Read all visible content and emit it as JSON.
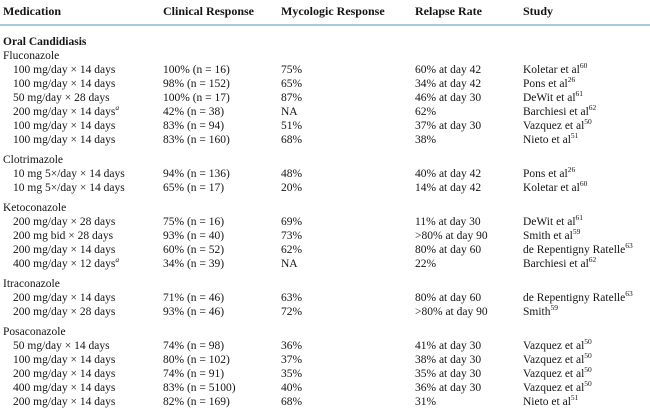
{
  "page": {
    "rule_color": "#a8c9dc",
    "background": "#ffffff"
  },
  "table": {
    "columns": [
      "Medication",
      "Clinical Response",
      "Mycologic Response",
      "Relapse Rate",
      "Study"
    ],
    "rows": [
      {
        "type": "section",
        "label": "Oral Candidiasis",
        "bold": true
      },
      {
        "type": "group",
        "label": "Fluconazole"
      },
      {
        "type": "data",
        "med": "100 mg/day × 14 days",
        "clinical": "100% (n = 16)",
        "myc": "75%",
        "relapse": "60% at day 42",
        "study": "Koletar et al",
        "study_sup": "60"
      },
      {
        "type": "data",
        "med": "100 mg/day × 14 days",
        "clinical": "98% (n = 152)",
        "myc": "65%",
        "relapse": "34% at day 42",
        "study": "Pons et al",
        "study_sup": "26"
      },
      {
        "type": "data",
        "med": "50 mg/day × 28 days",
        "clinical": "100% (n = 17)",
        "myc": "87%",
        "relapse": "46% at day 30",
        "study": "DeWit et al",
        "study_sup": "61"
      },
      {
        "type": "data",
        "med": "200 mg/day × 14 days",
        "med_sup": "a",
        "clinical": "42% (n = 38)",
        "myc": "NA",
        "relapse": "62%",
        "study": "Barchiesi et al",
        "study_sup": "62"
      },
      {
        "type": "data",
        "med": "100 mg/day × 14 days",
        "clinical": "83% (n = 94)",
        "myc": "51%",
        "relapse": "37% at day 30",
        "study": "Vazquez et al",
        "study_sup": "50"
      },
      {
        "type": "data",
        "med": "100 mg/day × 14 days",
        "clinical": "83% (n = 160)",
        "myc": "68%",
        "relapse": "38%",
        "study": "Nieto et al",
        "study_sup": "51"
      },
      {
        "type": "group",
        "label": "Clotrimazole",
        "gap": true
      },
      {
        "type": "data",
        "med": "10 mg 5×/day × 14 days",
        "clinical": "94% (n = 136)",
        "myc": "48%",
        "relapse": "40% at day 42",
        "study": "Pons et al",
        "study_sup": "26"
      },
      {
        "type": "data",
        "med": "10 mg 5×/day × 14 days",
        "clinical": "65% (n = 17)",
        "myc": "20%",
        "relapse": "14% at day 42",
        "study": "Koletar et al",
        "study_sup": "60"
      },
      {
        "type": "group",
        "label": "Ketoconazole",
        "gap": true
      },
      {
        "type": "data",
        "med": "200 mg/day × 28 days",
        "clinical": "75% (n = 16)",
        "myc": "69%",
        "relapse": "11% at day 30",
        "study": "DeWit et al",
        "study_sup": "61"
      },
      {
        "type": "data",
        "med": "200 mg bid × 28 days",
        "clinical": "93% (n = 40)",
        "myc": "73%",
        "relapse": ">80% at day 90",
        "study": "Smith et al",
        "study_sup": "59"
      },
      {
        "type": "data",
        "med": "200 mg/day × 14 days",
        "clinical": "60% (n = 52)",
        "myc": "62%",
        "relapse": "80% at day 60",
        "study": "de Repentigny Ratelle",
        "study_sup": "63"
      },
      {
        "type": "data",
        "med": "400 mg/day × 12 days",
        "med_sup": "a",
        "clinical": "34% (n = 39)",
        "myc": "NA",
        "relapse": "22%",
        "study": "Barchiesi et al",
        "study_sup": "62"
      },
      {
        "type": "group",
        "label": "Itraconazole",
        "gap": true
      },
      {
        "type": "data",
        "med": "200 mg/day × 14 days",
        "clinical": "71% (n = 46)",
        "myc": "63%",
        "relapse": "80% at day 60",
        "study": "de Repentigny Ratelle",
        "study_sup": "63"
      },
      {
        "type": "data",
        "med": "200 mg/day × 28 days",
        "clinical": "93% (n = 46)",
        "myc": "72%",
        "relapse": ">80% at day 90",
        "study": "Smith",
        "study_sup": "59"
      },
      {
        "type": "group",
        "label": "Posaconazole",
        "gap": true
      },
      {
        "type": "data",
        "med": "50 mg/day × 14 days",
        "clinical": "74% (n = 98)",
        "myc": "36%",
        "relapse": "41% at day 30",
        "study": "Vazquez et al",
        "study_sup": "50"
      },
      {
        "type": "data",
        "med": "100 mg/day × 14 days",
        "clinical": "80% (n = 102)",
        "myc": "37%",
        "relapse": "38% at day 30",
        "study": "Vazquez et al",
        "study_sup": "50"
      },
      {
        "type": "data",
        "med": "200 mg/day × 14 days",
        "clinical": "74% (n = 91)",
        "myc": "35%",
        "relapse": "35% at day 30",
        "study": "Vazquez et al",
        "study_sup": "50"
      },
      {
        "type": "data",
        "med": "400 mg/day × 14 days",
        "clinical": "83% (n = 5100)",
        "myc": "40%",
        "relapse": "36% at day 30",
        "study": "Vazquez et al",
        "study_sup": "50"
      },
      {
        "type": "data",
        "med": "200 mg/day × 14 days",
        "clinical": "82% (n = 169)",
        "myc": "68%",
        "relapse": "31%",
        "study": "Nieto et al",
        "study_sup": "51"
      }
    ]
  }
}
